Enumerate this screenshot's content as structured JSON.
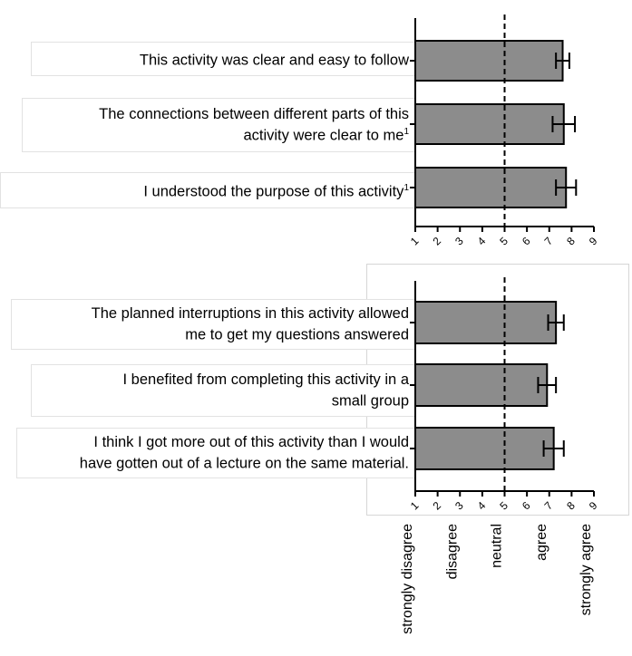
{
  "chart_data": [
    {
      "type": "bar",
      "orientation": "horizontal",
      "categories": [
        "This activity was clear and easy to follow",
        "The connections between different parts of this\nactivity were clear to me",
        "I understood the purpose of this activity"
      ],
      "superscripts": [
        "",
        "1",
        "1"
      ],
      "values": [
        7.6,
        7.65,
        7.75
      ],
      "errors": [
        0.3,
        0.5,
        0.45
      ],
      "xlim": [
        1,
        9
      ],
      "xticks": [
        "1",
        "2",
        "3",
        "4",
        "5",
        "6",
        "7",
        "8",
        "9"
      ],
      "reference_line": 5,
      "grid": false
    },
    {
      "type": "bar",
      "orientation": "horizontal",
      "categories": [
        "The planned interruptions in this activity allowed\nme to get my questions answered",
        "I benefited from completing this activity in a\nsmall group",
        "I think I got more out of this activity than I would\nhave gotten out of a lecture on the same material."
      ],
      "superscripts": [
        "",
        "",
        ""
      ],
      "values": [
        7.3,
        6.9,
        7.2
      ],
      "errors": [
        0.35,
        0.4,
        0.45
      ],
      "xlim": [
        1,
        9
      ],
      "xticks": [
        "1",
        "2",
        "3",
        "4",
        "5",
        "6",
        "7",
        "8",
        "9"
      ],
      "reference_line": 5,
      "grid": false
    }
  ],
  "scale_labels": [
    {
      "text": "strongly disagree",
      "value": 1
    },
    {
      "text": "disagree",
      "value": 3
    },
    {
      "text": "neutral",
      "value": 5
    },
    {
      "text": "agree",
      "value": 7
    },
    {
      "text": "strongly agree",
      "value": 9
    }
  ],
  "colors": {
    "bar_fill": "#8c8c8c",
    "bar_stroke": "#000000",
    "axis": "#000000",
    "reference_line": "#000000"
  }
}
